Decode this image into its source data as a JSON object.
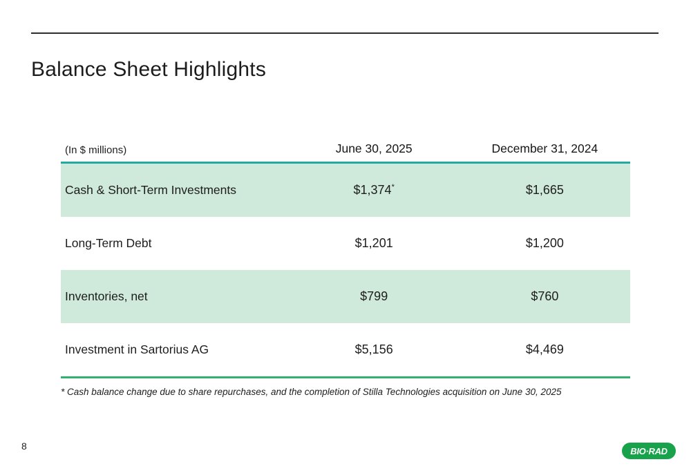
{
  "slide": {
    "title": "Balance Sheet Highlights",
    "page_number": "8",
    "footnote": "* Cash balance change due to share repurchases, and the completion of Stilla Technologies acquisition on June 30, 2025",
    "logo_text": "BIO·RAD"
  },
  "table": {
    "unit_label": "(In $ millions)",
    "columns": [
      "June 30, 2025",
      "December 31, 2024"
    ],
    "rows": [
      {
        "label": "Cash & Short-Term Investments",
        "jun": "$1,374",
        "jun_sup": "*",
        "dec": "$1,665"
      },
      {
        "label": "Long-Term Debt",
        "jun": "$1,201",
        "dec": "$1,200"
      },
      {
        "label": "Inventories, net",
        "jun": "$799",
        "dec": "$760"
      },
      {
        "label": "Investment in Sartorius AG",
        "jun": "$5,156",
        "dec": "$4,469"
      }
    ]
  },
  "colors": {
    "header_rule_teal": "#23a8a2",
    "bottom_rule_green": "#2fb36c",
    "row_highlight_mint": "#cfe9db",
    "logo_green": "#19a24c",
    "top_rule_black": "#2b2b2b"
  },
  "chart_data": {
    "type": "table",
    "title": "Balance Sheet Highlights",
    "unit": "In $ millions",
    "columns": [
      "",
      "June 30, 2025",
      "December 31, 2024"
    ],
    "rows": [
      [
        "Cash & Short-Term Investments",
        "$1,374*",
        "$1,665"
      ],
      [
        "Long-Term Debt",
        "$1,201",
        "$1,200"
      ],
      [
        "Inventories, net",
        "$799",
        "$760"
      ],
      [
        "Investment in Sartorius AG",
        "$5,156",
        "$4,469"
      ]
    ],
    "footnote": "* Cash balance change due to share repurchases, and the completion of Stilla Technologies acquisition on June 30, 2025"
  }
}
